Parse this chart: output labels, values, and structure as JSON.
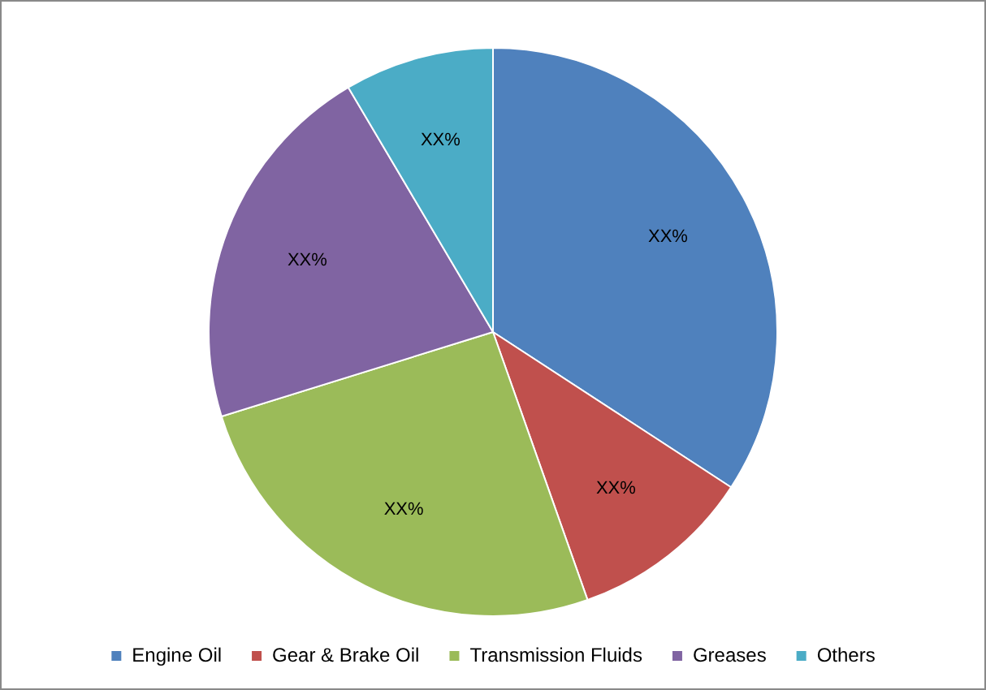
{
  "chart_data": {
    "type": "pie",
    "categories": [
      "Engine Oil",
      "Gear & Brake Oil",
      "Transmission Fluids",
      "Greases",
      "Others"
    ],
    "values": [
      34.2,
      10.4,
      25.6,
      21.3,
      8.5
    ],
    "colors": [
      "#4f81bd",
      "#c0504d",
      "#9bbb59",
      "#8064a2",
      "#4bacc6"
    ],
    "value_labels": [
      "XX%",
      "XX%",
      "XX%",
      "XX%",
      "XX%"
    ],
    "legend": "bottom"
  }
}
